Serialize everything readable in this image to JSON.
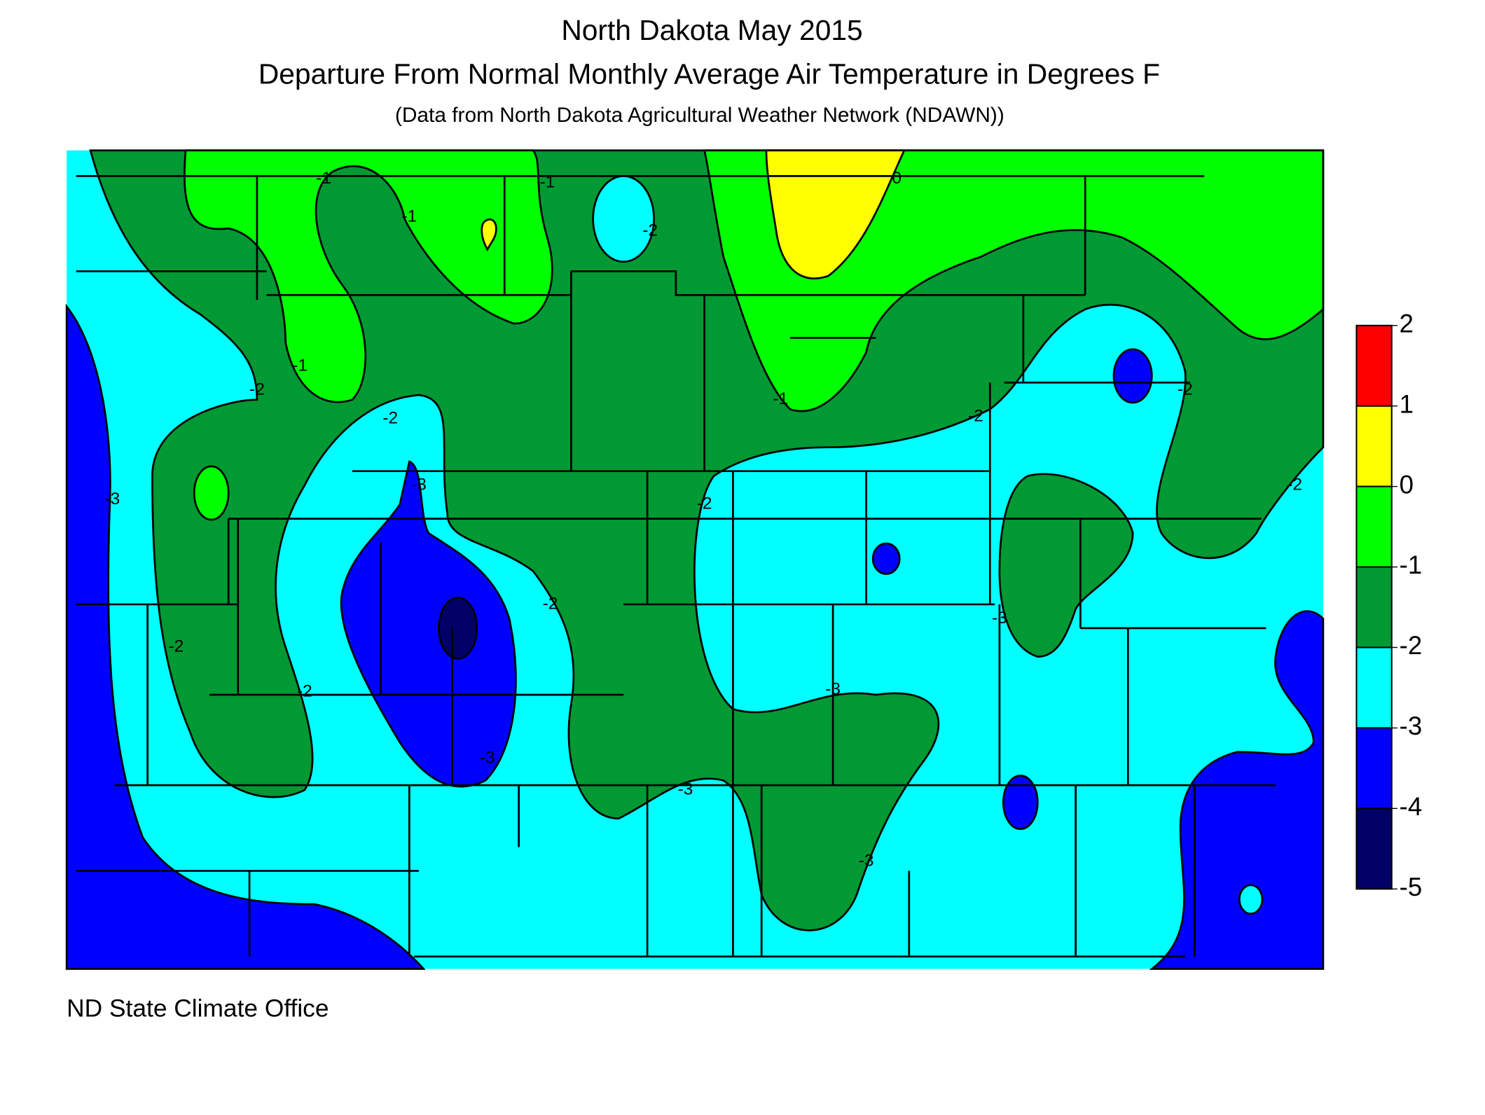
{
  "title": "North Dakota May 2015",
  "subtitle": "Departure From Normal Monthly Average Air Temperature in Degrees F",
  "source_note": "(Data from North Dakota Agricultural Weather Network (NDAWN))",
  "footer": "ND State Climate Office",
  "colorbar": {
    "levels": [
      2,
      1,
      0,
      -1,
      -2,
      -3,
      -4,
      -5
    ],
    "colors": [
      "#ff0000",
      "#ffff00",
      "#00ff00",
      "#009933",
      "#00ffff",
      "#0000ff",
      "#000066"
    ]
  },
  "contour_labels": [
    -1,
    -1,
    -1,
    -1,
    -1,
    0,
    -2,
    -2,
    -2,
    -2,
    -2,
    -2,
    -2,
    -2,
    -2,
    -2,
    -3,
    -3,
    -3,
    -3,
    -3,
    -3,
    -3
  ]
}
